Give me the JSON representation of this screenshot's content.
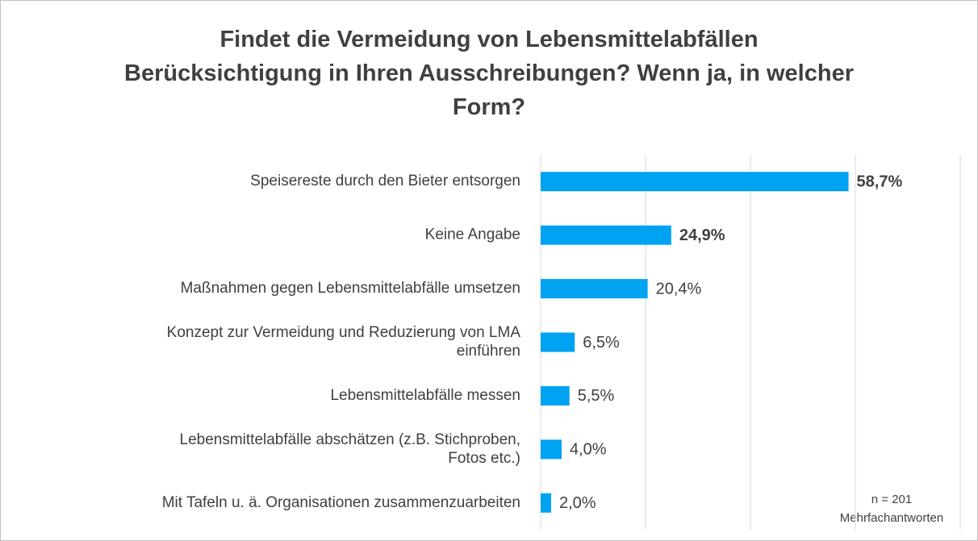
{
  "chart_data": {
    "type": "bar",
    "orientation": "horizontal",
    "title": "Findet die Vermeidung von Lebensmittelabfällen\nBerücksichtigung in Ihren Ausschreibungen? Wenn ja, in welcher\nForm?",
    "categories": [
      "Speisereste durch den Bieter entsorgen",
      "Keine Angabe",
      "Maßnahmen gegen Lebensmittelabfälle umsetzen",
      "Konzept zur Vermeidung und Reduzierung von LMA\neinführen",
      "Lebensmittelabfälle messen",
      "Lebensmittelabfälle abschätzen (z.B. Stichproben,\nFotos etc.)",
      "Mit Tafeln u. ä. Organisationen zusammenzuarbeiten"
    ],
    "values": [
      58.7,
      24.9,
      20.4,
      6.5,
      5.5,
      4.0,
      2.0
    ],
    "value_labels": [
      "58,7%",
      "24,9%",
      "20,4%",
      "6,5%",
      "5,5%",
      "4,0%",
      "2,0%"
    ],
    "value_label_bold": [
      true,
      true,
      false,
      false,
      false,
      false,
      false
    ],
    "color": "#00a2f2",
    "xlim": [
      0,
      80
    ],
    "xticks": [
      0,
      20,
      40,
      60,
      80
    ],
    "grid": true,
    "annotations": [
      "n = 201",
      "Mehrfachantworten"
    ]
  }
}
